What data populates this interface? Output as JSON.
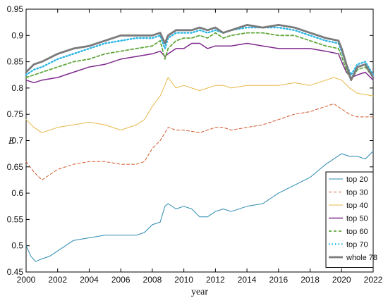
{
  "chart_data": {
    "type": "line",
    "title": "",
    "xlabel": "year",
    "ylabel": "E",
    "xlim": [
      2000,
      2022
    ],
    "ylim": [
      0.45,
      0.95
    ],
    "x_ticks": [
      "2000",
      "2002",
      "2004",
      "2006",
      "2008",
      "2010",
      "2012",
      "2014",
      "2016",
      "2018",
      "2020",
      "2022"
    ],
    "y_ticks": [
      "0.45",
      "0.5",
      "0.55",
      "0.6",
      "0.65",
      "0.7",
      "0.75",
      "0.8",
      "0.85",
      "0.9",
      "0.95"
    ],
    "grid": false,
    "legend_position": "bottom-right",
    "series": [
      {
        "name": "top 20",
        "color": "#2a8ab0",
        "dash": "solid",
        "x": [
          2000,
          2000.3,
          2000.6,
          2001,
          2001.5,
          2002,
          2003,
          2004,
          2005,
          2006,
          2007,
          2007.5,
          2008,
          2008.5,
          2008.8,
          2009,
          2009.5,
          2010,
          2010.5,
          2011,
          2011.5,
          2012,
          2012.5,
          2013,
          2014,
          2015,
          2016,
          2017,
          2018,
          2019,
          2019.5,
          2020,
          2020.5,
          2021,
          2021.5,
          2022
        ],
        "y": [
          0.5,
          0.48,
          0.47,
          0.475,
          0.48,
          0.49,
          0.51,
          0.515,
          0.52,
          0.52,
          0.52,
          0.525,
          0.54,
          0.545,
          0.575,
          0.58,
          0.57,
          0.575,
          0.57,
          0.555,
          0.555,
          0.565,
          0.57,
          0.565,
          0.575,
          0.58,
          0.6,
          0.615,
          0.63,
          0.655,
          0.665,
          0.675,
          0.67,
          0.67,
          0.665,
          0.68
        ]
      },
      {
        "name": "top 30",
        "color": "#d0582a",
        "dash": "dash",
        "x": [
          2000,
          2000.5,
          2001,
          2001.5,
          2002,
          2003,
          2004,
          2005,
          2006,
          2007,
          2007.5,
          2008,
          2008.5,
          2009,
          2009.5,
          2010,
          2011,
          2011.5,
          2012,
          2012.5,
          2013,
          2014,
          2015,
          2016,
          2017,
          2018,
          2019,
          2019.5,
          2020,
          2020.5,
          2021,
          2022
        ],
        "y": [
          0.66,
          0.64,
          0.625,
          0.635,
          0.645,
          0.655,
          0.66,
          0.66,
          0.655,
          0.655,
          0.66,
          0.685,
          0.7,
          0.725,
          0.72,
          0.72,
          0.715,
          0.72,
          0.725,
          0.725,
          0.72,
          0.725,
          0.73,
          0.74,
          0.75,
          0.755,
          0.765,
          0.77,
          0.76,
          0.75,
          0.745,
          0.745
        ]
      },
      {
        "name": "top 40",
        "color": "#e8b84a",
        "dash": "solid",
        "x": [
          2000,
          2000.5,
          2001,
          2001.5,
          2002,
          2003,
          2004,
          2005,
          2006,
          2007,
          2007.5,
          2008,
          2008.5,
          2009,
          2009.5,
          2010,
          2010.5,
          2011,
          2011.5,
          2012,
          2012.5,
          2013,
          2014,
          2015,
          2016,
          2017,
          2018,
          2019,
          2019.5,
          2020,
          2020.5,
          2021,
          2022
        ],
        "y": [
          0.74,
          0.725,
          0.715,
          0.72,
          0.725,
          0.73,
          0.735,
          0.73,
          0.72,
          0.73,
          0.74,
          0.765,
          0.785,
          0.82,
          0.8,
          0.805,
          0.8,
          0.795,
          0.8,
          0.805,
          0.805,
          0.8,
          0.805,
          0.805,
          0.805,
          0.81,
          0.805,
          0.815,
          0.82,
          0.815,
          0.8,
          0.79,
          0.785
        ]
      },
      {
        "name": "top 50",
        "color": "#7e2a8c",
        "dash": "solid",
        "x": [
          2000,
          2000.5,
          2001,
          2002,
          2003,
          2004,
          2005,
          2006,
          2007,
          2008,
          2008.5,
          2008.8,
          2009,
          2009.5,
          2010,
          2010.5,
          2011,
          2011.5,
          2012,
          2013,
          2014,
          2015,
          2016,
          2017,
          2018,
          2019,
          2019.8,
          2020,
          2020.3,
          2020.6,
          2021,
          2021.5,
          2022
        ],
        "y": [
          0.815,
          0.81,
          0.815,
          0.82,
          0.83,
          0.84,
          0.845,
          0.855,
          0.86,
          0.865,
          0.87,
          0.86,
          0.865,
          0.875,
          0.875,
          0.885,
          0.885,
          0.875,
          0.88,
          0.88,
          0.885,
          0.88,
          0.875,
          0.875,
          0.875,
          0.87,
          0.865,
          0.85,
          0.83,
          0.82,
          0.825,
          0.83,
          0.815
        ]
      },
      {
        "name": "top 60",
        "color": "#62a83c",
        "dash": "dash",
        "x": [
          2000,
          2000.5,
          2001,
          2002,
          2003,
          2004,
          2005,
          2006,
          2007,
          2008,
          2008.5,
          2008.8,
          2009,
          2009.5,
          2010,
          2010.5,
          2011,
          2011.5,
          2012,
          2012.5,
          2013,
          2014,
          2015,
          2016,
          2017,
          2018,
          2019,
          2019.8,
          2020,
          2020.3,
          2020.6,
          2021,
          2021.5,
          2022
        ],
        "y": [
          0.82,
          0.825,
          0.83,
          0.84,
          0.85,
          0.855,
          0.865,
          0.87,
          0.875,
          0.88,
          0.89,
          0.855,
          0.875,
          0.89,
          0.895,
          0.895,
          0.9,
          0.895,
          0.905,
          0.895,
          0.9,
          0.905,
          0.905,
          0.9,
          0.9,
          0.89,
          0.88,
          0.875,
          0.86,
          0.835,
          0.815,
          0.835,
          0.84,
          0.82
        ]
      },
      {
        "name": "top 70",
        "color": "#29b6e8",
        "dash": "dot",
        "x": [
          2000,
          2000.5,
          2001,
          2002,
          2003,
          2004,
          2005,
          2006,
          2007,
          2008,
          2008.5,
          2008.8,
          2009,
          2009.5,
          2010,
          2010.5,
          2011,
          2011.5,
          2012,
          2012.5,
          2013,
          2014,
          2015,
          2016,
          2017,
          2018,
          2019,
          2019.8,
          2020,
          2020.3,
          2020.6,
          2021,
          2021.5,
          2022
        ],
        "y": [
          0.825,
          0.835,
          0.84,
          0.855,
          0.865,
          0.875,
          0.885,
          0.89,
          0.895,
          0.895,
          0.9,
          0.875,
          0.895,
          0.905,
          0.905,
          0.905,
          0.91,
          0.905,
          0.91,
          0.905,
          0.91,
          0.915,
          0.915,
          0.915,
          0.91,
          0.9,
          0.89,
          0.885,
          0.87,
          0.845,
          0.825,
          0.845,
          0.85,
          0.825
        ]
      },
      {
        "name": "whole 78",
        "color": "#7a7a7a",
        "dash": "solid",
        "x": [
          2000,
          2000.5,
          2001,
          2002,
          2003,
          2004,
          2005,
          2006,
          2007,
          2008,
          2008.5,
          2008.8,
          2009,
          2009.5,
          2010,
          2010.5,
          2011,
          2011.5,
          2012,
          2012.5,
          2013,
          2014,
          2015,
          2016,
          2017,
          2018,
          2019,
          2019.8,
          2020,
          2020.3,
          2020.6,
          2021,
          2021.5,
          2022
        ],
        "y": [
          0.83,
          0.845,
          0.85,
          0.865,
          0.875,
          0.88,
          0.89,
          0.9,
          0.9,
          0.9,
          0.905,
          0.885,
          0.9,
          0.91,
          0.91,
          0.91,
          0.915,
          0.91,
          0.915,
          0.905,
          0.91,
          0.92,
          0.915,
          0.92,
          0.915,
          0.905,
          0.895,
          0.89,
          0.875,
          0.845,
          0.815,
          0.84,
          0.845,
          0.82
        ]
      }
    ]
  }
}
